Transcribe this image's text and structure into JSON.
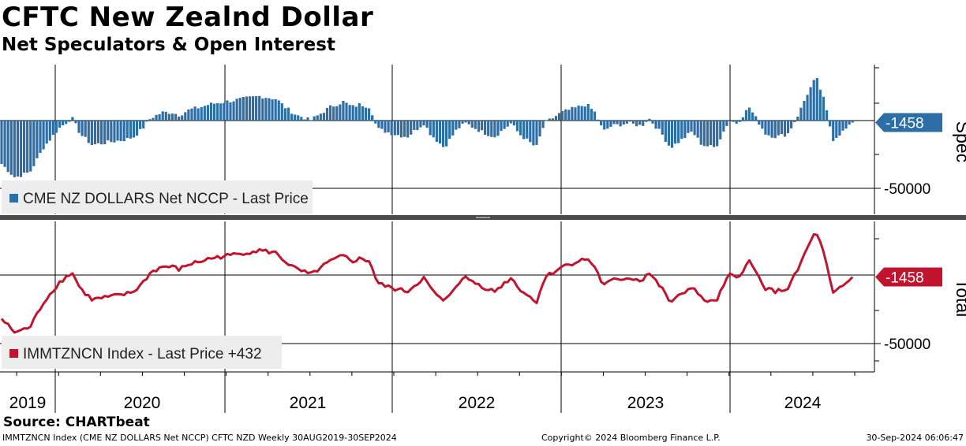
{
  "header": {
    "title": "CFTC New Zealnd Dollar",
    "subtitle": "Net Speculators & Open Interest"
  },
  "footer": {
    "source": "Source: CHARTbeat",
    "description": "IMMTZNCN Index (CME NZ DOLLARS Net NCCP) CFTC NZD  Weekly 30AUG2019-30SEP2024",
    "copyright": "Copyright© 2024 Bloomberg Finance L.P.",
    "timestamp": "30-Sep-2024 06:06:47"
  },
  "colors": {
    "spec": "#2e6ea6",
    "total": "#c0142f",
    "legend_bg": "#ededed"
  },
  "chart_data": [
    {
      "type": "bar",
      "panel": "top",
      "axis_title": "Spec",
      "legend": "CME NZ DOLLARS Net NCCP - Last Price",
      "last_value": "-1458",
      "y_tick_label": "-50000",
      "y_tick_value": -50000,
      "ylim": [
        -60000,
        40000
      ],
      "x_labels": [
        "2019",
        "2020",
        "2021",
        "2022",
        "2023",
        "2024"
      ],
      "x_start": 2019.66,
      "x_end": 2024.75,
      "x": [
        2019.66,
        2019.74,
        2019.83,
        2019.91,
        2020.0,
        2020.08,
        2020.13,
        2020.2,
        2020.3,
        2020.4,
        2020.45,
        2020.5,
        2020.55,
        2020.62,
        2020.68,
        2020.72,
        2020.78,
        2020.85,
        2020.9,
        2021.0,
        2021.1,
        2021.2,
        2021.3,
        2021.35,
        2021.42,
        2021.47,
        2021.5,
        2021.55,
        2021.62,
        2021.7,
        2021.75,
        2021.8,
        2021.86,
        2021.9,
        2022.0,
        2022.08,
        2022.18,
        2022.22,
        2022.3,
        2022.38,
        2022.43,
        2022.52,
        2022.6,
        2022.7,
        2022.75,
        2022.85,
        2022.9,
        2023.0,
        2023.05,
        2023.15,
        2023.2,
        2023.25,
        2023.3,
        2023.4,
        2023.48,
        2023.52,
        2023.6,
        2023.65,
        2023.72,
        2023.78,
        2023.84,
        2023.92,
        2024.0,
        2024.05,
        2024.12,
        2024.18,
        2024.22,
        2024.28,
        2024.35,
        2024.42,
        2024.46,
        2024.52,
        2024.57,
        2024.62,
        2024.7,
        2024.75
      ],
      "values": [
        -32000,
        -42000,
        -38000,
        -20000,
        -6000,
        2000,
        -10000,
        -18000,
        -16000,
        -14000,
        -12000,
        -6000,
        2000,
        6000,
        6000,
        4000,
        8000,
        10000,
        12000,
        14000,
        16000,
        18000,
        16000,
        10000,
        4000,
        2000,
        0,
        4000,
        10000,
        14000,
        10000,
        12000,
        10000,
        -6000,
        -10000,
        -12000,
        -2000,
        -10000,
        -20000,
        -6000,
        -2000,
        -8000,
        -12000,
        -2000,
        -10000,
        -20000,
        -2000,
        6000,
        8000,
        12000,
        6000,
        -8000,
        -4000,
        -2000,
        -4000,
        2000,
        -10000,
        -20000,
        -14000,
        -8000,
        -18000,
        -20000,
        0,
        -2000,
        10000,
        -2000,
        -10000,
        -12000,
        -10000,
        6000,
        18000,
        32000,
        14000,
        -14000,
        -6000,
        -1458
      ]
    },
    {
      "type": "line",
      "panel": "bottom",
      "axis_title": "Total",
      "legend": "IMMTZNCN Index - Last Price +432",
      "last_value": "-1458",
      "y_tick_label": "-50000",
      "y_tick_value": -50000,
      "ylim": [
        -60000,
        40000
      ],
      "x_labels": [
        "2019",
        "2020",
        "2021",
        "2022",
        "2023",
        "2024"
      ],
      "x_start": 2019.66,
      "x_end": 2024.75,
      "x": [
        2019.66,
        2019.74,
        2019.83,
        2019.91,
        2020.0,
        2020.08,
        2020.13,
        2020.2,
        2020.3,
        2020.4,
        2020.45,
        2020.5,
        2020.55,
        2020.62,
        2020.68,
        2020.72,
        2020.78,
        2020.85,
        2020.9,
        2021.0,
        2021.1,
        2021.2,
        2021.3,
        2021.35,
        2021.42,
        2021.47,
        2021.5,
        2021.55,
        2021.62,
        2021.7,
        2021.75,
        2021.8,
        2021.86,
        2021.9,
        2022.0,
        2022.08,
        2022.18,
        2022.22,
        2022.3,
        2022.38,
        2022.43,
        2022.52,
        2022.6,
        2022.7,
        2022.75,
        2022.85,
        2022.9,
        2023.0,
        2023.05,
        2023.15,
        2023.2,
        2023.25,
        2023.3,
        2023.4,
        2023.48,
        2023.52,
        2023.6,
        2023.65,
        2023.72,
        2023.78,
        2023.84,
        2023.92,
        2024.0,
        2024.05,
        2024.12,
        2024.18,
        2024.22,
        2024.28,
        2024.35,
        2024.42,
        2024.46,
        2024.52,
        2024.57,
        2024.62,
        2024.7,
        2024.75
      ],
      "values": [
        -32000,
        -42000,
        -38000,
        -20000,
        -6000,
        2000,
        -10000,
        -18000,
        -16000,
        -14000,
        -12000,
        -6000,
        2000,
        6000,
        6000,
        4000,
        8000,
        10000,
        12000,
        14000,
        16000,
        18000,
        16000,
        10000,
        4000,
        2000,
        0,
        4000,
        10000,
        14000,
        10000,
        12000,
        10000,
        -6000,
        -10000,
        -12000,
        -2000,
        -10000,
        -20000,
        -6000,
        -2000,
        -8000,
        -12000,
        -2000,
        -10000,
        -20000,
        -2000,
        6000,
        8000,
        12000,
        6000,
        -8000,
        -4000,
        -2000,
        -4000,
        2000,
        -10000,
        -20000,
        -14000,
        -8000,
        -18000,
        -20000,
        0,
        -2000,
        10000,
        -2000,
        -10000,
        -12000,
        -10000,
        6000,
        18000,
        32000,
        14000,
        -14000,
        -6000,
        -1458
      ]
    }
  ]
}
